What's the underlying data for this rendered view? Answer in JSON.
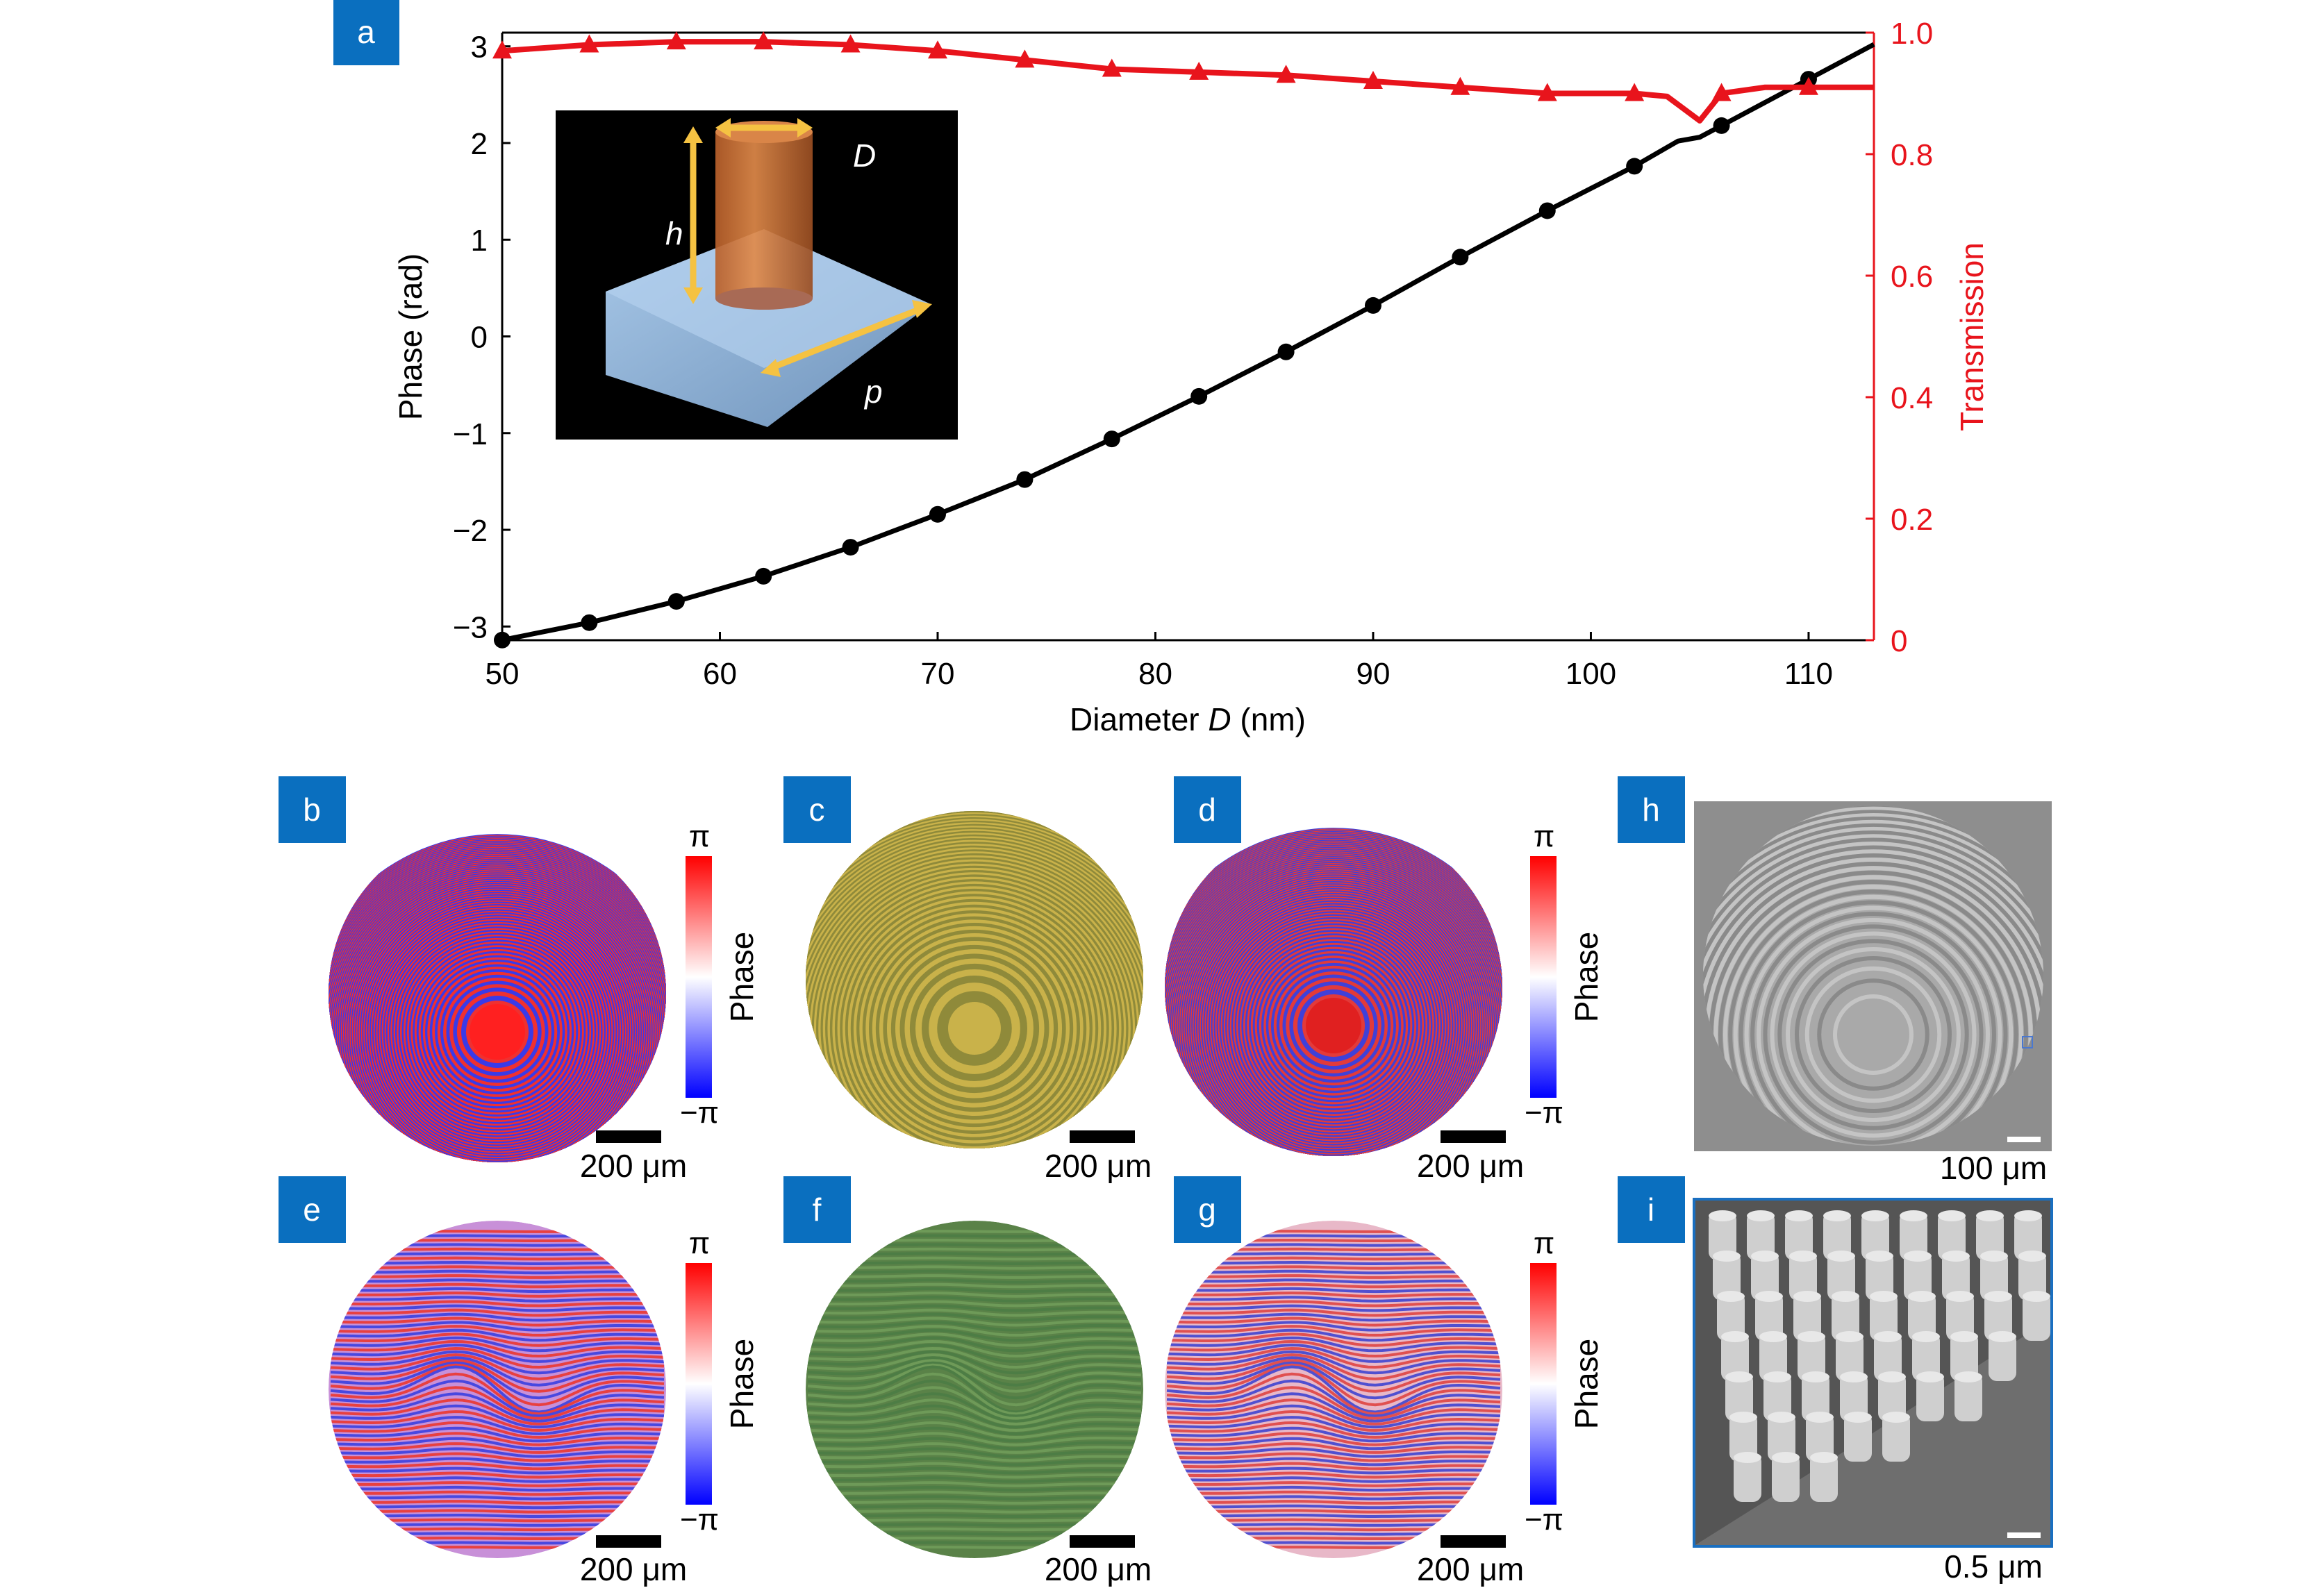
{
  "panel_labels": {
    "a": "a",
    "b": "b",
    "c": "c",
    "d": "d",
    "e": "e",
    "f": "f",
    "g": "g",
    "h": "h",
    "i": "i"
  },
  "colors": {
    "label_box": "#0a6fbf",
    "phase": "#000000",
    "transmission": "#e8141c",
    "phase_max": "#ff0000",
    "phase_min": "#0000ff"
  },
  "chart_data": {
    "type": "line",
    "xlabel_prefix": "Diameter ",
    "xlabel_var": "D",
    "xlabel_suffix": " (nm)",
    "ylabel": "Phase (rad)",
    "y2label": "Transmission",
    "xlim": [
      50,
      113
    ],
    "ylim": [
      -3.1416,
      3.1416
    ],
    "y2lim": [
      0,
      1
    ],
    "xticks": [
      "50",
      "60",
      "70",
      "80",
      "90",
      "100",
      "110"
    ],
    "yticks": [
      "3",
      "2",
      "1",
      "0",
      "−1",
      "−2",
      "−3"
    ],
    "y2ticks": [
      "1.0",
      "0.8",
      "0.6",
      "0.4",
      "0.2",
      "0"
    ],
    "series": [
      {
        "name": "Phase",
        "axis": "left",
        "marker": "circle",
        "x": [
          50,
          54,
          58,
          62,
          66,
          70,
          74,
          78,
          82,
          86,
          90,
          94,
          98,
          102,
          106,
          110
        ],
        "y": [
          -3.14,
          -2.96,
          -2.74,
          -2.48,
          -2.18,
          -1.84,
          -1.48,
          -1.06,
          -0.62,
          -0.16,
          0.32,
          0.82,
          1.3,
          1.76,
          2.18,
          2.66
        ],
        "line_x": [
          50,
          54,
          58,
          62,
          66,
          70,
          74,
          78,
          82,
          86,
          90,
          94,
          98,
          102,
          104,
          105,
          106,
          110,
          113
        ],
        "line_y": [
          -3.14,
          -2.96,
          -2.74,
          -2.48,
          -2.18,
          -1.84,
          -1.48,
          -1.06,
          -0.62,
          -0.16,
          0.32,
          0.82,
          1.3,
          1.76,
          2.02,
          2.06,
          2.18,
          2.66,
          3.02
        ]
      },
      {
        "name": "Transmission",
        "axis": "right",
        "marker": "triangle",
        "x": [
          50,
          54,
          58,
          62,
          66,
          70,
          74,
          78,
          82,
          86,
          90,
          94,
          98,
          102,
          106,
          110
        ],
        "y": [
          0.97,
          0.98,
          0.985,
          0.985,
          0.98,
          0.97,
          0.955,
          0.94,
          0.935,
          0.93,
          0.92,
          0.91,
          0.9,
          0.9,
          0.9,
          0.91
        ],
        "line_x": [
          50,
          54,
          58,
          62,
          66,
          70,
          74,
          78,
          82,
          86,
          90,
          94,
          98,
          102,
          103.5,
          105,
          106,
          108,
          110,
          113
        ],
        "line_y": [
          0.97,
          0.98,
          0.985,
          0.985,
          0.98,
          0.97,
          0.955,
          0.94,
          0.935,
          0.93,
          0.92,
          0.91,
          0.9,
          0.9,
          0.895,
          0.855,
          0.9,
          0.91,
          0.91,
          0.91
        ]
      }
    ]
  },
  "inset": {
    "D": "D",
    "h": "h",
    "p": "p"
  },
  "colorbar": {
    "max": "π",
    "min": "−π",
    "label": "Phase"
  },
  "scalebars": {
    "s200": "200 μm",
    "s100": "100 μm",
    "s05": "0.5 μm"
  }
}
